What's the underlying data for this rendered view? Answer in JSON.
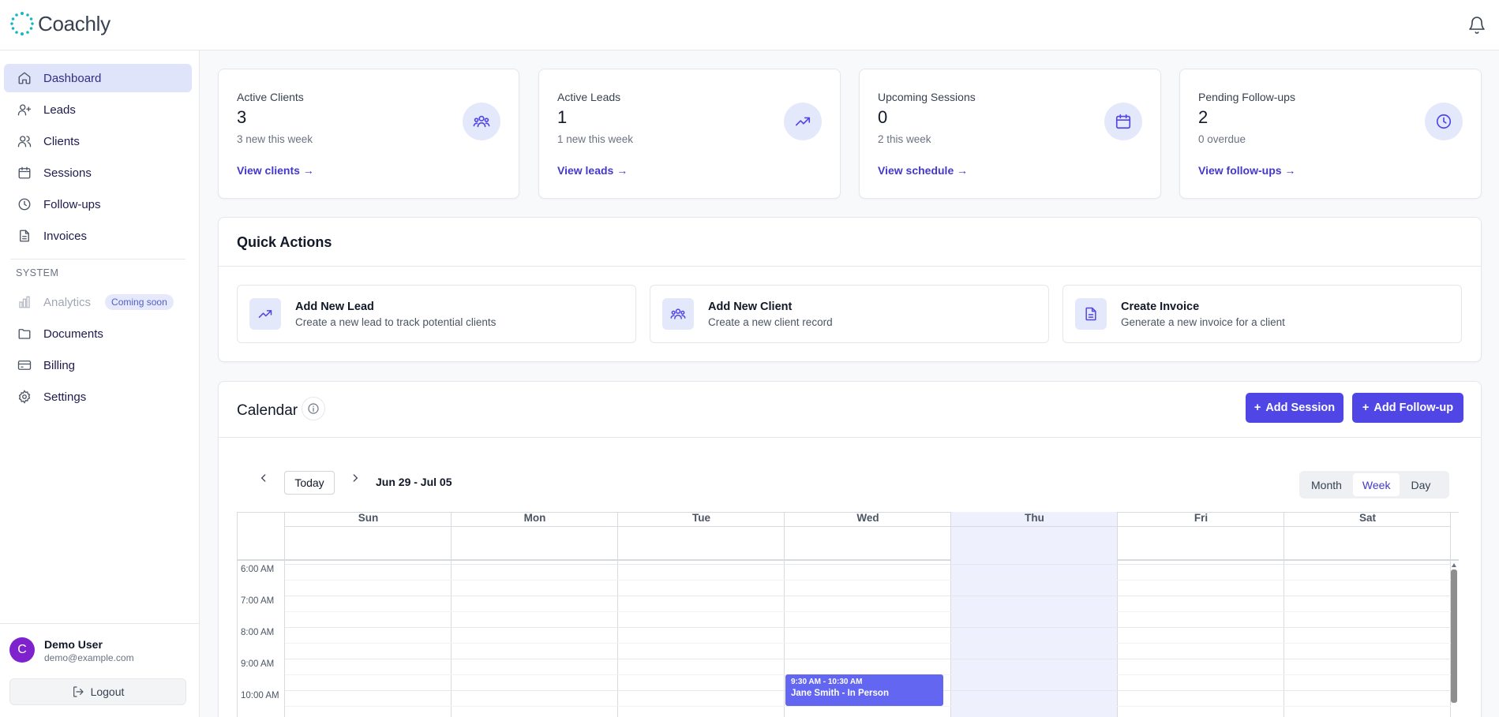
{
  "app": {
    "name": "Coachly"
  },
  "sidebar": {
    "items": [
      {
        "label": "Dashboard",
        "icon": "home-icon"
      },
      {
        "label": "Leads",
        "icon": "user-plus-icon"
      },
      {
        "label": "Clients",
        "icon": "users-icon"
      },
      {
        "label": "Sessions",
        "icon": "calendar-icon"
      },
      {
        "label": "Follow-ups",
        "icon": "clock-icon"
      },
      {
        "label": "Invoices",
        "icon": "file-icon"
      }
    ],
    "system_label": "SYSTEM",
    "system_items": [
      {
        "label": "Analytics",
        "icon": "bar-chart-icon",
        "badge": "Coming soon"
      },
      {
        "label": "Documents",
        "icon": "folder-icon"
      },
      {
        "label": "Billing",
        "icon": "credit-card-icon"
      },
      {
        "label": "Settings",
        "icon": "gear-icon"
      }
    ],
    "user": {
      "initial": "C",
      "name": "Demo User",
      "email": "demo@example.com"
    },
    "logout_label": "Logout"
  },
  "stats": [
    {
      "title": "Active Clients",
      "value": "3",
      "sub": "3 new this week",
      "link": "View clients →",
      "icon": "users-icon"
    },
    {
      "title": "Active Leads",
      "value": "1",
      "sub": "1 new this week",
      "link": "View leads →",
      "icon": "trending-up-icon"
    },
    {
      "title": "Upcoming Sessions",
      "value": "0",
      "sub": "2 this week",
      "link": "View schedule →",
      "icon": "calendar-icon"
    },
    {
      "title": "Pending Follow-ups",
      "value": "2",
      "sub": "0 overdue",
      "link": "View follow-ups →",
      "icon": "clock-icon"
    }
  ],
  "quick_actions": {
    "title": "Quick Actions",
    "items": [
      {
        "title": "Add New Lead",
        "desc": "Create a new lead to track potential clients",
        "icon": "trending-up-icon"
      },
      {
        "title": "Add New Client",
        "desc": "Create a new client record",
        "icon": "users-icon"
      },
      {
        "title": "Create Invoice",
        "desc": "Generate a new invoice for a client",
        "icon": "file-icon"
      }
    ]
  },
  "calendar": {
    "title": "Calendar",
    "add_session": "Add Session",
    "add_followup": "Add Follow-up",
    "today": "Today",
    "range": "Jun 29 - Jul 05",
    "views": [
      "Month",
      "Week",
      "Day"
    ],
    "active_view": "Week",
    "days": [
      "Sun",
      "Mon",
      "Tue",
      "Wed",
      "Thu",
      "Fri",
      "Sat"
    ],
    "highlight_day": "Thu",
    "times": [
      "6:00 AM",
      "7:00 AM",
      "8:00 AM",
      "9:00 AM",
      "10:00 AM"
    ],
    "events": [
      {
        "day": "Wed",
        "time": "9:30 AM - 10:30 AM",
        "title": "Jane Smith - In Person"
      }
    ]
  },
  "colors": {
    "accent": "#4f46e5",
    "active_nav": "#e0e4fb",
    "highlight_col": "#eef0fd",
    "event": "#6366f1"
  }
}
